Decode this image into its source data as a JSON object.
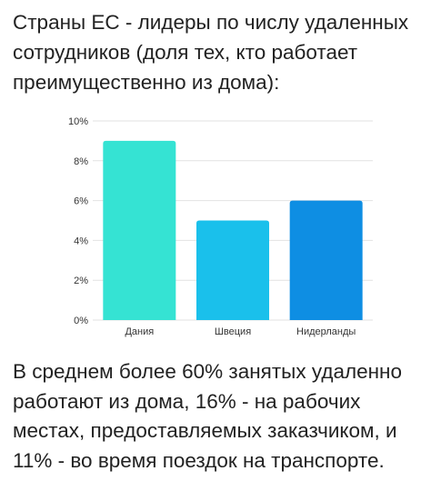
{
  "heading": "Страны ЕС - лидеры по числу удаленных сотрудников (доля тех, кто работает преимущественно из дома):",
  "footer": "В среднем более 60% занятых удаленно работают из дома, 16% - на рабочих местах, предоставляемых заказчиком, и 11% - во время поездок на транспорте.",
  "chart_data": {
    "type": "bar",
    "categories": [
      "Дания",
      "Швеция",
      "Нидерланды"
    ],
    "values": [
      9,
      5,
      6
    ],
    "unit": "%",
    "title": "",
    "xlabel": "",
    "ylabel": "",
    "ylim": [
      0,
      10
    ],
    "yticks": [
      0,
      2,
      4,
      6,
      8,
      10
    ],
    "ytick_labels": [
      "0%",
      "2%",
      "4%",
      "6%",
      "8%",
      "10%"
    ],
    "grid": true,
    "legend": "none",
    "colors": [
      "#35e3d3",
      "#1ac0eb",
      "#0e8ee3"
    ],
    "grid_color": "#e2e2e2"
  }
}
